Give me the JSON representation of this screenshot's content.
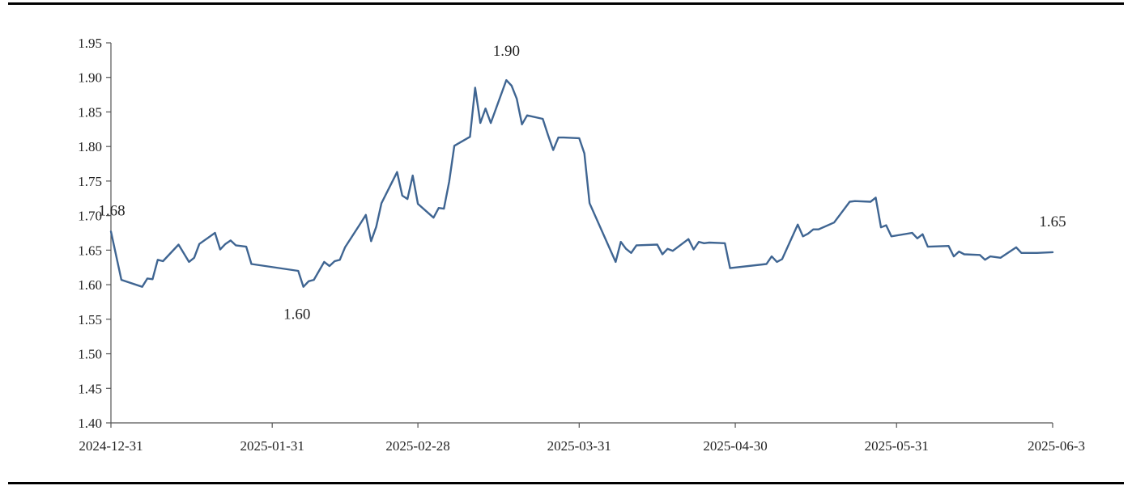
{
  "chart_data": {
    "type": "line",
    "title": "",
    "xlabel": "",
    "ylabel": "",
    "ylim": [
      1.4,
      1.95
    ],
    "yticks": [
      1.4,
      1.45,
      1.5,
      1.55,
      1.6,
      1.65,
      1.7,
      1.75,
      1.8,
      1.85,
      1.9,
      1.95
    ],
    "ytick_labels": [
      "1.40",
      "1.45",
      "1.50",
      "1.55",
      "1.60",
      "1.65",
      "1.70",
      "1.75",
      "1.80",
      "1.85",
      "1.90",
      "1.95"
    ],
    "xlim": [
      "2024-12-31",
      "2025-06-30"
    ],
    "xtick_labels": [
      "2024-12-31",
      "2025-01-31",
      "2025-02-28",
      "2025-03-31",
      "2025-04-30",
      "2025-05-31",
      "2025-06-3"
    ],
    "xtick_dates": [
      "2024-12-31",
      "2025-01-31",
      "2025-02-28",
      "2025-03-31",
      "2025-04-30",
      "2025-05-31",
      "2025-06-30"
    ],
    "grid": false,
    "line_color": "#3f6592",
    "series": [
      {
        "name": "",
        "points": [
          [
            "2024-12-31",
            1.677
          ],
          [
            "2025-01-02",
            1.607
          ],
          [
            "2025-01-06",
            1.597
          ],
          [
            "2025-01-07",
            1.609
          ],
          [
            "2025-01-08",
            1.608
          ],
          [
            "2025-01-09",
            1.636
          ],
          [
            "2025-01-10",
            1.634
          ],
          [
            "2025-01-13",
            1.658
          ],
          [
            "2025-01-15",
            1.633
          ],
          [
            "2025-01-16",
            1.639
          ],
          [
            "2025-01-17",
            1.659
          ],
          [
            "2025-01-20",
            1.675
          ],
          [
            "2025-01-21",
            1.651
          ],
          [
            "2025-01-22",
            1.659
          ],
          [
            "2025-01-23",
            1.664
          ],
          [
            "2025-01-24",
            1.657
          ],
          [
            "2025-01-26",
            1.655
          ],
          [
            "2025-01-27",
            1.63
          ],
          [
            "2025-02-05",
            1.62
          ],
          [
            "2025-02-06",
            1.597
          ],
          [
            "2025-02-07",
            1.605
          ],
          [
            "2025-02-08",
            1.607
          ],
          [
            "2025-02-10",
            1.633
          ],
          [
            "2025-02-11",
            1.627
          ],
          [
            "2025-02-12",
            1.634
          ],
          [
            "2025-02-13",
            1.636
          ],
          [
            "2025-02-14",
            1.654
          ],
          [
            "2025-02-17",
            1.689
          ],
          [
            "2025-02-18",
            1.701
          ],
          [
            "2025-02-19",
            1.663
          ],
          [
            "2025-02-20",
            1.684
          ],
          [
            "2025-02-21",
            1.718
          ],
          [
            "2025-02-24",
            1.763
          ],
          [
            "2025-02-25",
            1.729
          ],
          [
            "2025-02-26",
            1.724
          ],
          [
            "2025-02-27",
            1.758
          ],
          [
            "2025-02-28",
            1.717
          ],
          [
            "2025-03-03",
            1.697
          ],
          [
            "2025-03-04",
            1.711
          ],
          [
            "2025-03-05",
            1.71
          ],
          [
            "2025-03-06",
            1.749
          ],
          [
            "2025-03-07",
            1.801
          ],
          [
            "2025-03-10",
            1.814
          ],
          [
            "2025-03-11",
            1.885
          ],
          [
            "2025-03-12",
            1.834
          ],
          [
            "2025-03-13",
            1.855
          ],
          [
            "2025-03-14",
            1.834
          ],
          [
            "2025-03-17",
            1.896
          ],
          [
            "2025-03-18",
            1.888
          ],
          [
            "2025-03-19",
            1.869
          ],
          [
            "2025-03-20",
            1.832
          ],
          [
            "2025-03-21",
            1.845
          ],
          [
            "2025-03-24",
            1.84
          ],
          [
            "2025-03-25",
            1.817
          ],
          [
            "2025-03-26",
            1.795
          ],
          [
            "2025-03-27",
            1.813
          ],
          [
            "2025-03-28",
            1.813
          ],
          [
            "2025-03-31",
            1.812
          ],
          [
            "2025-04-01",
            1.79
          ],
          [
            "2025-04-02",
            1.718
          ],
          [
            "2025-04-07",
            1.633
          ],
          [
            "2025-04-08",
            1.662
          ],
          [
            "2025-04-09",
            1.652
          ],
          [
            "2025-04-10",
            1.646
          ],
          [
            "2025-04-11",
            1.657
          ],
          [
            "2025-04-15",
            1.658
          ],
          [
            "2025-04-16",
            1.644
          ],
          [
            "2025-04-17",
            1.652
          ],
          [
            "2025-04-18",
            1.649
          ],
          [
            "2025-04-21",
            1.666
          ],
          [
            "2025-04-22",
            1.651
          ],
          [
            "2025-04-23",
            1.662
          ],
          [
            "2025-04-24",
            1.66
          ],
          [
            "2025-04-25",
            1.661
          ],
          [
            "2025-04-28",
            1.66
          ],
          [
            "2025-04-29",
            1.624
          ],
          [
            "2025-05-06",
            1.63
          ],
          [
            "2025-05-07",
            1.641
          ],
          [
            "2025-05-08",
            1.633
          ],
          [
            "2025-05-09",
            1.637
          ],
          [
            "2025-05-12",
            1.687
          ],
          [
            "2025-05-13",
            1.67
          ],
          [
            "2025-05-14",
            1.674
          ],
          [
            "2025-05-15",
            1.68
          ],
          [
            "2025-05-16",
            1.68
          ],
          [
            "2025-05-19",
            1.69
          ],
          [
            "2025-05-22",
            1.72
          ],
          [
            "2025-05-23",
            1.721
          ],
          [
            "2025-05-26",
            1.72
          ],
          [
            "2025-05-27",
            1.726
          ],
          [
            "2025-05-28",
            1.683
          ],
          [
            "2025-05-29",
            1.686
          ],
          [
            "2025-05-30",
            1.67
          ],
          [
            "2025-06-03",
            1.675
          ],
          [
            "2025-06-04",
            1.667
          ],
          [
            "2025-06-05",
            1.673
          ],
          [
            "2025-06-06",
            1.655
          ],
          [
            "2025-06-10",
            1.656
          ],
          [
            "2025-06-11",
            1.641
          ],
          [
            "2025-06-12",
            1.648
          ],
          [
            "2025-06-13",
            1.644
          ],
          [
            "2025-06-16",
            1.643
          ],
          [
            "2025-06-17",
            1.636
          ],
          [
            "2025-06-18",
            1.641
          ],
          [
            "2025-06-19",
            1.64
          ],
          [
            "2025-06-20",
            1.639
          ],
          [
            "2025-06-23",
            1.654
          ],
          [
            "2025-06-24",
            1.646
          ],
          [
            "2025-06-27",
            1.646
          ],
          [
            "2025-06-30",
            1.647
          ]
        ]
      }
    ],
    "annotations": [
      {
        "text": "1.68",
        "date": "2024-12-31",
        "value": 1.677
      },
      {
        "text": "1.60",
        "date": "2025-02-06",
        "value": 1.597
      },
      {
        "text": "1.90",
        "date": "2025-03-17",
        "value": 1.896
      },
      {
        "text": "1.65",
        "date": "2025-06-30",
        "value": 1.647
      }
    ]
  }
}
